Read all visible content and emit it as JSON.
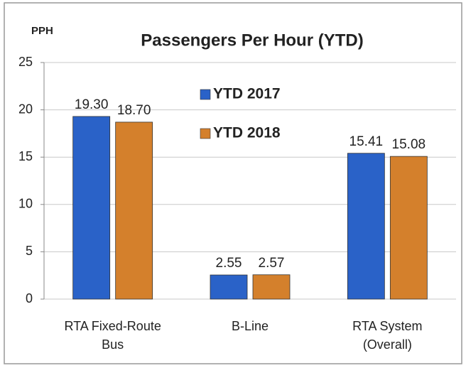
{
  "chart_data": {
    "type": "bar",
    "title": "Passengers Per Hour (YTD)",
    "y_label": "PPH",
    "categories": [
      "RTA Fixed-Route Bus",
      "B-Line",
      "RTA System (Overall)"
    ],
    "series": [
      {
        "name": "YTD 2017",
        "color": "#2a62c8",
        "values": [
          19.3,
          2.55,
          15.41
        ],
        "value_labels": [
          "19.30",
          "2.55",
          "15.41"
        ]
      },
      {
        "name": "YTD 2018",
        "color": "#d4802c",
        "values": [
          18.7,
          2.57,
          15.08
        ],
        "value_labels": [
          "18.70",
          "2.57",
          "15.08"
        ]
      }
    ],
    "ylim": [
      0,
      25
    ],
    "yticks": [
      0,
      5,
      10,
      15,
      20,
      25
    ],
    "grid": true,
    "legend": "top"
  }
}
